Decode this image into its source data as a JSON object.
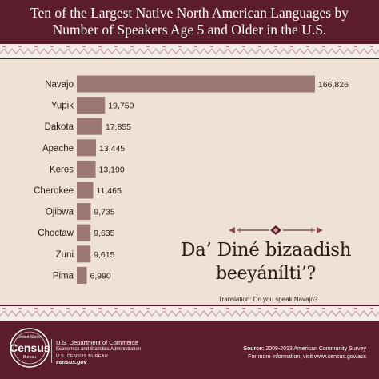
{
  "title": {
    "line1": "Ten of the Largest Native North American Languages by",
    "line2": "Number of Speakers Age 5 and Older in the U.S."
  },
  "phrase": {
    "line1": "Da’ Diné bizaadish",
    "line2": "beeyánílti’?",
    "translation": "Translation: Do you speak Navajo?"
  },
  "footer": {
    "logo_top": "United States",
    "logo_word": "Census",
    "logo_bottom": "Bureau",
    "department": "U.S. Department of Commerce",
    "administration": "Economics and Statistics Administration",
    "bureau": "U.S. CENSUS BUREAU",
    "site": "census.gov",
    "source_label": "Source:",
    "source_text": "2009-2013 American Community Survey",
    "more_info": "For more information, visit www.census.gov/acs"
  },
  "colors": {
    "background": "#5b1c2b",
    "panel": "#eee1d6",
    "bar": "#9b7874",
    "text": "#2a1a14"
  },
  "chart_data": {
    "type": "bar",
    "orientation": "horizontal",
    "title": "Ten of the Largest Native North American Languages by Number of Speakers Age 5 and Older in the U.S.",
    "xlabel": "",
    "ylabel": "",
    "grid": false,
    "categories": [
      "Navajo",
      "Yupik",
      "Dakota",
      "Apache",
      "Keres",
      "Cherokee",
      "Ojibwa",
      "Choctaw",
      "Zuni",
      "Pima"
    ],
    "values": [
      166826,
      19750,
      17855,
      13445,
      13190,
      11465,
      9735,
      9635,
      9615,
      6990
    ],
    "value_labels": [
      "166,826",
      "19,750",
      "17,855",
      "13,445",
      "13,190",
      "11,465",
      "9,735",
      "9,635",
      "9,615",
      "6,990"
    ],
    "xlim": [
      0,
      166826
    ]
  }
}
